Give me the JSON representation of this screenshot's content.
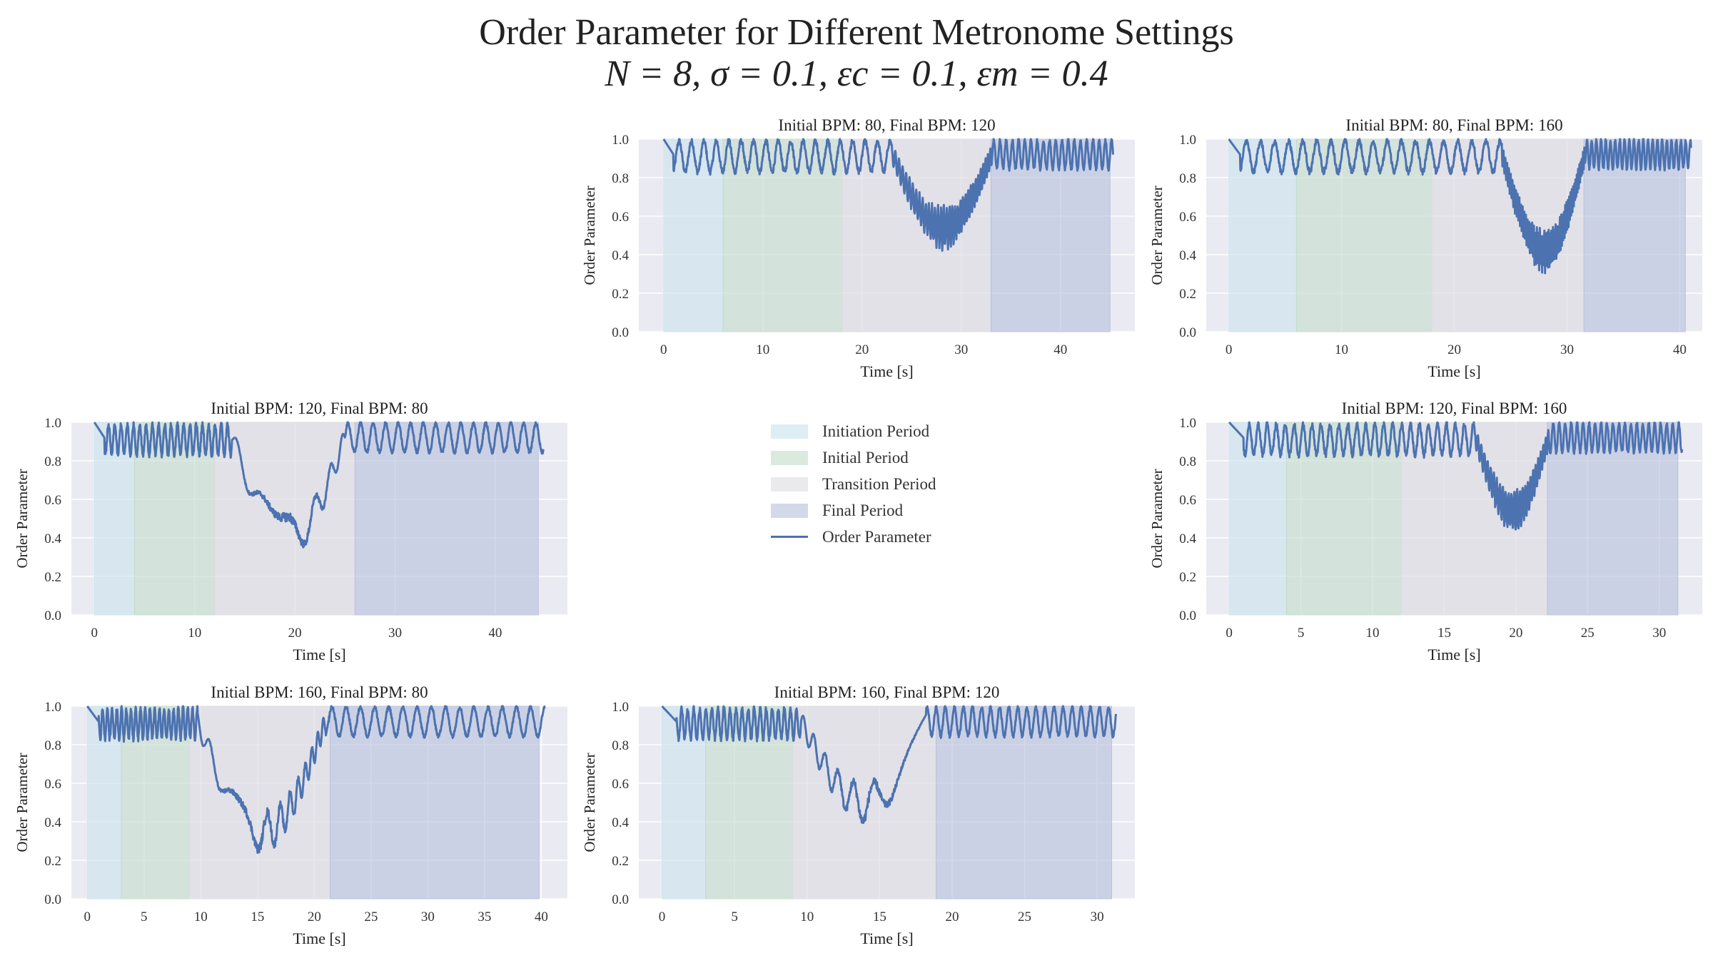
{
  "title": {
    "line1": "Order Parameter for Different Metronome Settings",
    "line2": "N = 8, σ = 0.1, εc = 0.1, εm = 0.4"
  },
  "colors": {
    "initiation": "#c7e2ec",
    "initial": "#c3dcc9",
    "transition": "#dcdce0",
    "final": "#b5bfdb",
    "line": "#4c72b0",
    "plot_bg": "#eaeaf2",
    "grid": "#ffffff"
  },
  "legend": {
    "items": [
      {
        "label": "Initiation Period",
        "key": "initiation",
        "kind": "patch"
      },
      {
        "label": "Initial Period",
        "key": "initial",
        "kind": "patch"
      },
      {
        "label": "Transition Period",
        "key": "transition",
        "kind": "patch"
      },
      {
        "label": "Final Period",
        "key": "final",
        "kind": "patch"
      },
      {
        "label": "Order Parameter",
        "key": "line",
        "kind": "line"
      }
    ]
  },
  "chart_data": [
    {
      "type": "line",
      "title": "Initial BPM: 80, Final BPM: 120",
      "xlabel": "Time [s]",
      "ylabel": "Order Parameter",
      "xlim": [
        -2.5,
        47.5
      ],
      "ylim": [
        0,
        1
      ],
      "xticks": [
        0,
        10,
        20,
        30,
        40
      ],
      "yticks": [
        0.0,
        0.2,
        0.4,
        0.6,
        0.8,
        1.0
      ],
      "periods": {
        "initiation": [
          0,
          6
        ],
        "initial": [
          6,
          18
        ],
        "transition": [
          18,
          33
        ],
        "final": [
          33,
          45
        ]
      },
      "signal": {
        "end": 45.3,
        "f1": 0.8,
        "f2": 1.6,
        "dip_center": 28.2,
        "dip_min": 0.46,
        "tc_end": 33.1
      }
    },
    {
      "type": "line",
      "title": "Initial BPM: 80, Final BPM: 160",
      "xlabel": "Time [s]",
      "ylabel": "Order Parameter",
      "xlim": [
        -2.0,
        42.0
      ],
      "ylim": [
        0,
        1
      ],
      "xticks": [
        0,
        10,
        20,
        30,
        40
      ],
      "yticks": [
        0.0,
        0.2,
        0.4,
        0.6,
        0.8,
        1.0
      ],
      "periods": {
        "initiation": [
          0,
          6
        ],
        "initial": [
          6,
          18
        ],
        "transition": [
          18,
          31.5
        ],
        "final": [
          31.5,
          40.5
        ]
      },
      "signal": {
        "end": 41.0,
        "f1": 0.8,
        "f2": 2.4,
        "dip_center": 28.0,
        "dip_min": 0.34,
        "tc_end": 31.6
      }
    },
    {
      "type": "line",
      "title": "Initial BPM: 120, Final BPM: 80",
      "xlabel": "Time [s]",
      "ylabel": "Order Parameter",
      "xlim": [
        -2.3,
        47.2
      ],
      "ylim": [
        0,
        1
      ],
      "xticks": [
        0,
        10,
        20,
        30,
        40
      ],
      "yticks": [
        0.0,
        0.2,
        0.4,
        0.6,
        0.8,
        1.0
      ],
      "periods": {
        "initiation": [
          0,
          4
        ],
        "initial": [
          4,
          12
        ],
        "transition": [
          12,
          26
        ],
        "final": [
          26,
          44.3
        ]
      },
      "signal": {
        "end": 44.8,
        "f1": 1.6,
        "f2": 0.8,
        "dip_center": 19.5,
        "dip_min": 0.33,
        "tc_end": 25.0
      }
    },
    {
      "type": "line",
      "title": "Initial BPM: 120, Final BPM: 160",
      "xlabel": "Time [s]",
      "ylabel": "Order Parameter",
      "xlim": [
        -1.6,
        33.0
      ],
      "ylim": [
        0,
        1
      ],
      "xticks": [
        0,
        5,
        10,
        15,
        20,
        25,
        30
      ],
      "yticks": [
        0.0,
        0.2,
        0.4,
        0.6,
        0.8,
        1.0
      ],
      "periods": {
        "initiation": [
          0,
          4
        ],
        "initial": [
          4,
          12
        ],
        "transition": [
          12,
          22.2
        ],
        "final": [
          22.2,
          31.3
        ]
      },
      "signal": {
        "end": 31.6,
        "f1": 1.6,
        "f2": 2.4,
        "dip_center": 19.8,
        "dip_min": 0.46,
        "tc_end": 22.3
      }
    },
    {
      "type": "line",
      "title": "Initial BPM: 160, Final BPM: 80",
      "xlabel": "Time [s]",
      "ylabel": "Order Parameter",
      "xlim": [
        -1.4,
        42.3
      ],
      "ylim": [
        0,
        1
      ],
      "xticks": [
        0,
        5,
        10,
        15,
        20,
        25,
        30,
        35,
        40
      ],
      "yticks": [
        0.0,
        0.2,
        0.4,
        0.6,
        0.8,
        1.0
      ],
      "periods": {
        "initiation": [
          0,
          3
        ],
        "initial": [
          3,
          9
        ],
        "transition": [
          9,
          21.4
        ],
        "final": [
          21.4,
          39.8
        ]
      },
      "signal": {
        "end": 40.3,
        "f1": 2.4,
        "f2": 0.8,
        "dip_center": 15.5,
        "dip_min": 0.27,
        "tc_end": 21.0
      }
    },
    {
      "type": "line",
      "title": "Initial BPM: 160, Final BPM: 120",
      "xlabel": "Time [s]",
      "ylabel": "Order Parameter",
      "xlim": [
        -1.6,
        32.6
      ],
      "ylim": [
        0,
        1
      ],
      "xticks": [
        0,
        5,
        10,
        15,
        20,
        25,
        30
      ],
      "yticks": [
        0.0,
        0.2,
        0.4,
        0.6,
        0.8,
        1.0
      ],
      "periods": {
        "initiation": [
          0,
          3
        ],
        "initial": [
          3,
          9
        ],
        "transition": [
          9,
          18.9
        ],
        "final": [
          18.9,
          31.0
        ]
      },
      "signal": {
        "end": 31.3,
        "f1": 2.4,
        "f2": 1.6,
        "dip_center": 14.0,
        "dip_min": 0.42,
        "tc_end": 18.2
      }
    }
  ]
}
